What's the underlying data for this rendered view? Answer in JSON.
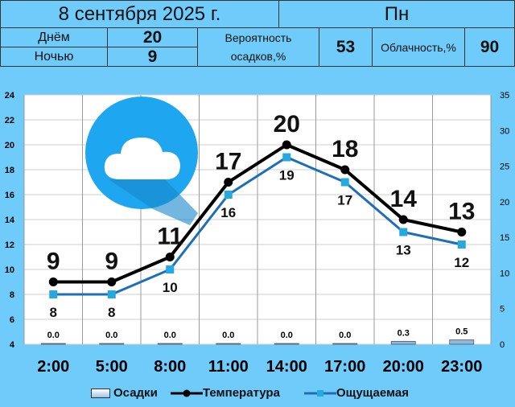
{
  "header": {
    "date": "8 сентября 2025 г.",
    "weekday": "Пн"
  },
  "summary": {
    "day_label": "Днём",
    "day_value": "20",
    "night_label": "Ночью",
    "night_value": "9",
    "precip_label": "Вероятность осадков,%",
    "precip_value": "53",
    "cloud_label": "Облачность,%",
    "cloud_value": "90"
  },
  "icon": "cloud-icon",
  "colors": {
    "background": "#6fcbf9",
    "plot": "#ffffff",
    "temp_line": "#000000",
    "feels_line": "#1e6fb5",
    "feels_marker": "#26a9e0",
    "icon_circle": "#1ea7f0"
  },
  "chart_data": {
    "type": "line",
    "categories": [
      "2:00",
      "5:00",
      "8:00",
      "11:00",
      "14:00",
      "17:00",
      "20:00",
      "23:00"
    ],
    "series": [
      {
        "name": "Температура",
        "axis": "left",
        "values": [
          9,
          9,
          11,
          17,
          20,
          18,
          14,
          13
        ]
      },
      {
        "name": "Ощущаемая",
        "axis": "left",
        "values": [
          8,
          8,
          10,
          16,
          19,
          17,
          13,
          12
        ]
      },
      {
        "name": "Осадки",
        "axis": "right",
        "type": "bar",
        "values": [
          0.0,
          0.0,
          0.0,
          0.0,
          0.0,
          0.0,
          0.3,
          0.5
        ]
      }
    ],
    "precip_labels": [
      "0.0",
      "0.0",
      "0.0",
      "0.0",
      "0.0",
      "0.0",
      "0.3",
      "0.5"
    ],
    "ylim_left": [
      4,
      24
    ],
    "yticks_left": [
      4,
      6,
      8,
      10,
      12,
      14,
      16,
      18,
      20,
      22,
      24
    ],
    "ylim_right": [
      0,
      35
    ],
    "yticks_right": [
      0,
      5,
      10,
      15,
      20,
      25,
      30,
      35
    ],
    "grid": true,
    "legend": [
      "Осадки",
      "Температура",
      "Ощущаемая"
    ],
    "legend_position": "bottom"
  }
}
